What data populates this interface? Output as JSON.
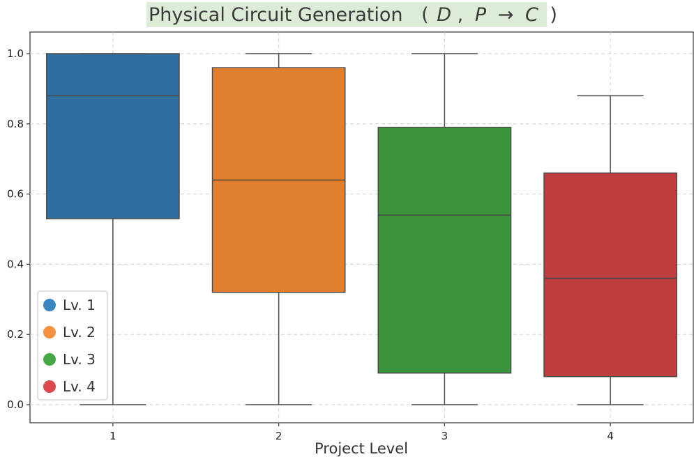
{
  "chart_data": {
    "type": "box",
    "title": "Physical Circuit Generation",
    "title_math": {
      "open": "(",
      "d": "D",
      "comma": ",",
      "p": "P",
      "arrow": "→",
      "c": "C",
      "close": ")"
    },
    "xlabel": "Project Level",
    "ylabel": "",
    "ylim": [
      -0.05,
      1.06
    ],
    "yticks": [
      "0.0",
      "0.2",
      "0.4",
      "0.6",
      "0.8",
      "1.0"
    ],
    "grid": true,
    "legend_position": "lower-left",
    "categories": [
      "1",
      "2",
      "3",
      "4"
    ],
    "series": [
      {
        "name": "Lv. 1",
        "color": "#2f6f9f",
        "legend_color": "#3a86c0",
        "min": 0.0,
        "q1": 0.53,
        "median": 0.88,
        "q3": 1.0,
        "max": 1.0
      },
      {
        "name": "Lv. 2",
        "color": "#e07f2e",
        "legend_color": "#f59140",
        "min": 0.0,
        "q1": 0.32,
        "median": 0.64,
        "q3": 0.96,
        "max": 1.0
      },
      {
        "name": "Lv. 3",
        "color": "#3a923a",
        "legend_color": "#45a845",
        "min": 0.0,
        "q1": 0.09,
        "median": 0.54,
        "q3": 0.79,
        "max": 1.0
      },
      {
        "name": "Lv. 4",
        "color": "#c03d3e",
        "legend_color": "#dc4a4b",
        "min": 0.0,
        "q1": 0.08,
        "median": 0.36,
        "q3": 0.66,
        "max": 0.88
      }
    ]
  }
}
